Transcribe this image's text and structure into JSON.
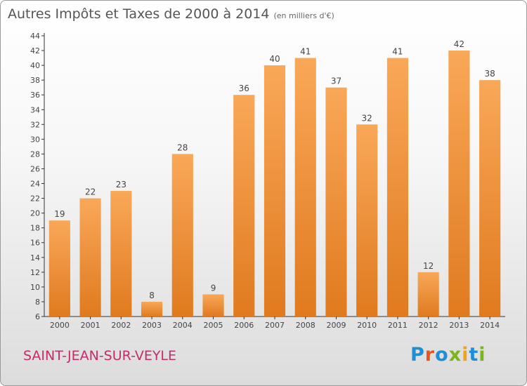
{
  "title": "Autres Impôts et Taxes de 2000 à 2014",
  "unit": "(en milliers d'€)",
  "place": "SAINT-JEAN-SUR-VEYLE",
  "logo": {
    "text": "Proxiti",
    "colors": [
      "#1f8ed6",
      "#e8541e",
      "#1f8ed6",
      "#7ab51d",
      "#f3a21b",
      "#1f8ed6",
      "#7ab51d"
    ]
  },
  "colors": {
    "bar_light": "#f9a858",
    "bar_dark": "#e07a1f",
    "title": "#555555",
    "place": "#c62b6b"
  },
  "chart_data": {
    "type": "bar",
    "categories": [
      "2000",
      "2001",
      "2002",
      "2003",
      "2004",
      "2005",
      "2006",
      "2007",
      "2008",
      "2009",
      "2010",
      "2011",
      "2012",
      "2013",
      "2014"
    ],
    "values": [
      19,
      22,
      23,
      8,
      28,
      9,
      36,
      40,
      41,
      37,
      32,
      41,
      12,
      42,
      38
    ],
    "ylim": [
      6,
      44
    ],
    "ytick_step": 2,
    "grid": false,
    "data_labels": true
  }
}
